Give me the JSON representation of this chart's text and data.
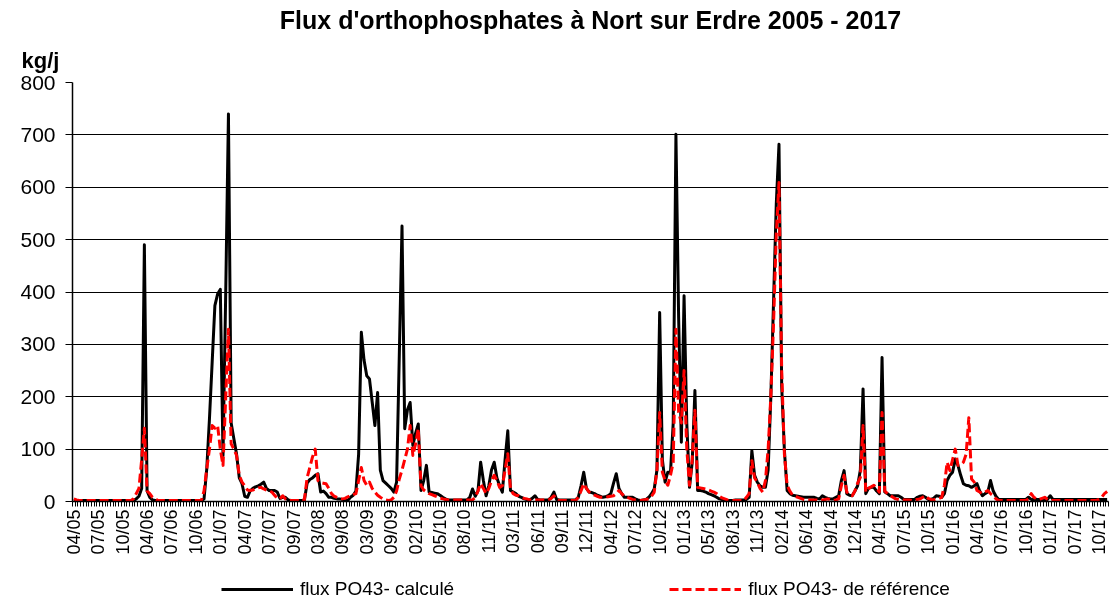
{
  "chart_data": {
    "type": "line",
    "title": "Flux d'orthophosphates à Nort sur Erdre 2005 - 2017",
    "ylabel": "kg/j",
    "categories": [
      "04/05",
      null,
      null,
      null,
      null,
      null,
      null,
      null,
      null,
      "07/05",
      null,
      null,
      null,
      null,
      null,
      null,
      null,
      null,
      "10/05",
      null,
      null,
      null,
      null,
      null,
      null,
      null,
      null,
      "04/06",
      null,
      null,
      null,
      null,
      null,
      null,
      null,
      null,
      "07/06",
      null,
      null,
      null,
      null,
      null,
      null,
      null,
      null,
      "10/06",
      null,
      null,
      null,
      null,
      null,
      null,
      null,
      null,
      "01/07",
      null,
      null,
      null,
      null,
      null,
      null,
      null,
      null,
      "04/07",
      null,
      null,
      null,
      null,
      null,
      null,
      null,
      null,
      "07/07",
      null,
      null,
      null,
      null,
      null,
      null,
      null,
      null,
      "09/07",
      null,
      null,
      null,
      null,
      null,
      null,
      null,
      null,
      "03/08",
      null,
      null,
      null,
      null,
      null,
      null,
      null,
      null,
      "09/08",
      null,
      null,
      null,
      null,
      null,
      null,
      null,
      null,
      "03/09",
      null,
      null,
      null,
      null,
      null,
      null,
      null,
      null,
      "09/09",
      null,
      null,
      null,
      null,
      null,
      null,
      null,
      null,
      "02/10",
      null,
      null,
      null,
      null,
      null,
      null,
      null,
      null,
      "05/10",
      null,
      null,
      null,
      null,
      null,
      null,
      null,
      null,
      "08/10",
      null,
      null,
      null,
      null,
      null,
      null,
      null,
      null,
      "11/10",
      null,
      null,
      null,
      null,
      null,
      null,
      null,
      null,
      "03/11",
      null,
      null,
      null,
      null,
      null,
      null,
      null,
      null,
      "06/11",
      null,
      null,
      null,
      null,
      null,
      null,
      null,
      null,
      "09/11",
      null,
      null,
      null,
      null,
      null,
      null,
      null,
      null,
      "12/11",
      null,
      null,
      null,
      null,
      null,
      null,
      null,
      null,
      "04/12",
      null,
      null,
      null,
      null,
      null,
      null,
      null,
      null,
      "07/12",
      null,
      null,
      null,
      null,
      null,
      null,
      null,
      null,
      "10/12",
      null,
      null,
      null,
      null,
      null,
      null,
      null,
      null,
      "01/13",
      null,
      null,
      null,
      null,
      null,
      null,
      null,
      null,
      "05/13",
      null,
      null,
      null,
      null,
      null,
      null,
      null,
      null,
      "08/13",
      null,
      null,
      null,
      null,
      null,
      null,
      null,
      null,
      "11/13",
      null,
      null,
      null,
      null,
      null,
      null,
      null,
      null,
      "02/14",
      null,
      null,
      null,
      null,
      null,
      null,
      null,
      null,
      "06/14",
      null,
      null,
      null,
      null,
      null,
      null,
      null,
      null,
      "09/14",
      null,
      null,
      null,
      null,
      null,
      null,
      null,
      null,
      "12/14",
      null,
      null,
      null,
      null,
      null,
      null,
      null,
      null,
      "04/15",
      null,
      null,
      null,
      null,
      null,
      null,
      null,
      null,
      "07/15",
      null,
      null,
      null,
      null,
      null,
      null,
      null,
      null,
      "10/15",
      null,
      null,
      null,
      null,
      null,
      null,
      null,
      null,
      "01/16",
      null,
      null,
      null,
      null,
      null,
      null,
      null,
      null,
      "04/16",
      null,
      null,
      null,
      null,
      null,
      null,
      null,
      null,
      "07/16",
      null,
      null,
      null,
      null,
      null,
      null,
      null,
      null,
      "10/16",
      null,
      null,
      null,
      null,
      null,
      null,
      null,
      null,
      "01/17",
      null,
      null,
      null,
      null,
      null,
      null,
      null,
      null,
      "07/17",
      null,
      null,
      null,
      null,
      null,
      null,
      null,
      null,
      "10/17",
      null,
      null,
      null
    ],
    "series": [
      {
        "name": "flux PO43- calculé",
        "color": "#000000",
        "line_style": "solid",
        "values": [
          2,
          2,
          2,
          2,
          2,
          2,
          2,
          2,
          2,
          2,
          2,
          2,
          2,
          2,
          2,
          2,
          2,
          2,
          2,
          2,
          2,
          2,
          2,
          5,
          10,
          25,
          490,
          20,
          8,
          3,
          2,
          2,
          2,
          2,
          2,
          2,
          2,
          2,
          2,
          2,
          2,
          2,
          2,
          2,
          2,
          2,
          2,
          2,
          5,
          62,
          158,
          266,
          374,
          396,
          405,
          88,
          400,
          740,
          150,
          120,
          90,
          45,
          34,
          10,
          8,
          20,
          25,
          28,
          30,
          33,
          37,
          25,
          21,
          21,
          21,
          18,
          6,
          8,
          8,
          3,
          2,
          2,
          2,
          2,
          2,
          2,
          35,
          42,
          45,
          50,
          53,
          18,
          20,
          15,
          8,
          8,
          6,
          5,
          5,
          4,
          2,
          2,
          8,
          12,
          20,
          90,
          323,
          270,
          240,
          234,
          190,
          145,
          208,
          60,
          40,
          35,
          30,
          25,
          18,
          37,
          280,
          526,
          139,
          175,
          189,
          107,
          130,
          148,
          21,
          40,
          69,
          18,
          17,
          16,
          15,
          12,
          8,
          5,
          3,
          3,
          3,
          3,
          3,
          3,
          3,
          3,
          8,
          24,
          10,
          20,
          75,
          40,
          11,
          30,
          60,
          75,
          45,
          30,
          18,
          80,
          135,
          21,
          18,
          15,
          10,
          8,
          5,
          4,
          3,
          6,
          11,
          4,
          3,
          3,
          3,
          3,
          8,
          18,
          4,
          3,
          3,
          3,
          3,
          3,
          3,
          3,
          8,
          30,
          56,
          25,
          18,
          17,
          15,
          12,
          10,
          8,
          9,
          11,
          15,
          35,
          53,
          25,
          15,
          8,
          8,
          8,
          8,
          5,
          3,
          2,
          3,
          4,
          8,
          15,
          24,
          60,
          361,
          80,
          37,
          56,
          56,
          150,
          701,
          350,
          113,
          393,
          150,
          27,
          75,
          212,
          21,
          21,
          20,
          18,
          15,
          13,
          11,
          8,
          5,
          4,
          3,
          2,
          2,
          2,
          3,
          3,
          3,
          3,
          4,
          8,
          97,
          50,
          37,
          30,
          27,
          27,
          60,
          200,
          383,
          568,
          682,
          220,
          97,
          21,
          15,
          12,
          11,
          10,
          9,
          8,
          8,
          8,
          8,
          8,
          6,
          5,
          11,
          8,
          6,
          5,
          5,
          8,
          11,
          40,
          59,
          15,
          12,
          11,
          20,
          30,
          60,
          215,
          15,
          25,
          27,
          27,
          20,
          15,
          275,
          18,
          15,
          11,
          11,
          11,
          11,
          8,
          4,
          4,
          4,
          4,
          4,
          8,
          10,
          11,
          8,
          4,
          4,
          6,
          11,
          10,
          8,
          15,
          40,
          50,
          56,
          81,
          69,
          50,
          34,
          31,
          30,
          27,
          30,
          34,
          20,
          11,
          15,
          18,
          40,
          20,
          10,
          4,
          4,
          4,
          4,
          4,
          4,
          4,
          4,
          4,
          4,
          4,
          8,
          4,
          4,
          4,
          4,
          4,
          4,
          4,
          11,
          4,
          4,
          4,
          4,
          4,
          4,
          4,
          4,
          4,
          4,
          4,
          4,
          4,
          4,
          4,
          4,
          4,
          4,
          4,
          4,
          4
        ]
      },
      {
        "name": "flux PO43- de référence",
        "color": "#ff0000",
        "line_style": "dashed",
        "values": [
          5,
          3,
          2,
          2,
          2,
          2,
          2,
          2,
          2,
          2,
          2,
          2,
          2,
          2,
          2,
          2,
          2,
          2,
          2,
          2,
          2,
          2,
          5,
          15,
          25,
          80,
          140,
          20,
          15,
          8,
          5,
          2,
          2,
          2,
          2,
          2,
          2,
          2,
          2,
          2,
          2,
          2,
          2,
          2,
          2,
          2,
          2,
          2,
          20,
          62,
          100,
          145,
          140,
          145,
          100,
          69,
          200,
          329,
          110,
          100,
          88,
          50,
          37,
          30,
          22,
          21,
          22,
          24,
          26,
          27,
          24,
          22,
          20,
          18,
          12,
          6,
          5,
          11,
          5,
          2,
          2,
          2,
          2,
          2,
          5,
          3,
          45,
          65,
          85,
          100,
          40,
          36,
          35,
          34,
          25,
          15,
          10,
          8,
          6,
          5,
          6,
          9,
          11,
          13,
          15,
          40,
          65,
          40,
          31,
          37,
          25,
          18,
          12,
          8,
          5,
          3,
          2,
          3,
          8,
          20,
          43,
          60,
          80,
          100,
          145,
          88,
          110,
          139,
          30,
          22,
          18,
          15,
          13,
          11,
          9,
          7,
          5,
          4,
          3,
          3,
          3,
          3,
          3,
          3,
          3,
          3,
          3,
          3,
          8,
          20,
          34,
          25,
          15,
          25,
          40,
          50,
          40,
          27,
          30,
          60,
          91,
          24,
          15,
          12,
          11,
          8,
          6,
          5,
          3,
          3,
          3,
          3,
          3,
          3,
          3,
          3,
          6,
          11,
          4,
          2,
          2,
          2,
          2,
          2,
          2,
          2,
          8,
          20,
          34,
          25,
          18,
          15,
          12,
          10,
          8,
          8,
          8,
          9,
          10,
          11,
          15,
          21,
          15,
          10,
          8,
          6,
          4,
          3,
          2,
          2,
          3,
          4,
          5,
          10,
          18,
          60,
          170,
          56,
          40,
          31,
          50,
          75,
          329,
          170,
          150,
          250,
          100,
          31,
          80,
          174,
          27,
          26,
          25,
          24,
          22,
          20,
          18,
          15,
          10,
          7,
          5,
          3,
          2,
          2,
          2,
          2,
          2,
          2,
          8,
          15,
          78,
          45,
          37,
          25,
          18,
          40,
          100,
          202,
          340,
          510,
          609,
          250,
          90,
          31,
          20,
          12,
          10,
          8,
          6,
          4,
          3,
          3,
          3,
          3,
          3,
          2,
          3,
          4,
          5,
          3,
          2,
          3,
          5,
          30,
          50,
          18,
          14,
          11,
          20,
          35,
          46,
          145,
          18,
          25,
          28,
          31,
          25,
          18,
          170,
          20,
          15,
          12,
          8,
          5,
          4,
          3,
          3,
          3,
          3,
          2,
          3,
          4,
          5,
          8,
          11,
          6,
          4,
          3,
          5,
          6,
          8,
          31,
          75,
          59,
          80,
          100,
          69,
          70,
          75,
          90,
          160,
          43,
          37,
          21,
          18,
          15,
          18,
          21,
          15,
          11,
          5,
          2,
          2,
          2,
          2,
          2,
          2,
          2,
          2,
          2,
          2,
          2,
          5,
          15,
          8,
          5,
          4,
          6,
          8,
          4,
          2,
          2,
          2,
          2,
          2,
          2,
          2,
          2,
          2,
          2,
          2,
          2,
          2,
          2,
          2,
          2,
          2,
          2,
          4,
          8,
          15,
          19
        ]
      }
    ],
    "ylim": [
      0,
      800
    ],
    "yticks": [
      0,
      100,
      200,
      300,
      400,
      500,
      600,
      700,
      800
    ],
    "grid": "y",
    "legend": "bottom"
  }
}
